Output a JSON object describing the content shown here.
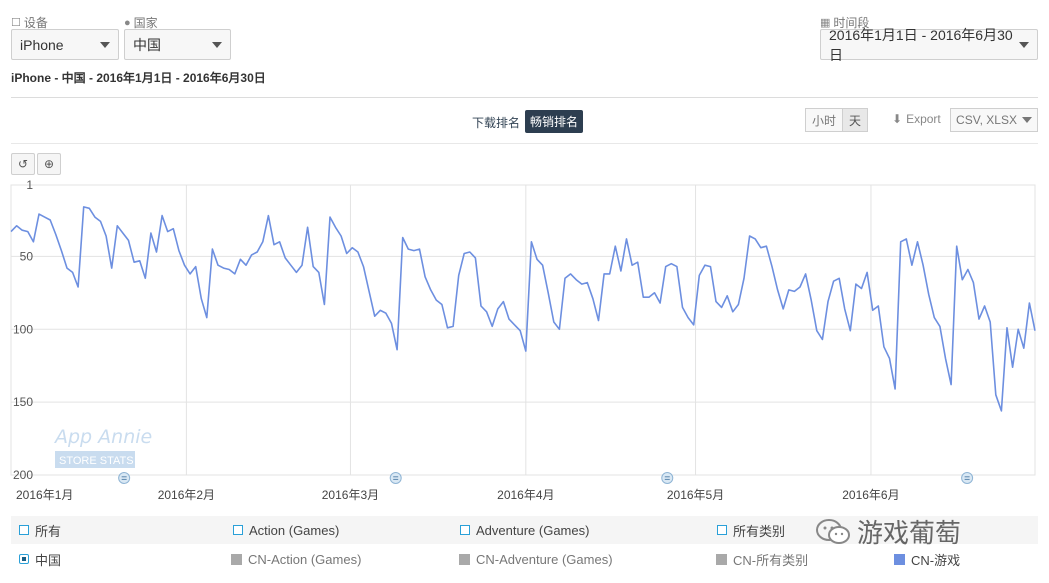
{
  "filters": {
    "device_label": "设备",
    "device_value": "iPhone",
    "country_label": "国家",
    "country_value": "中国",
    "period_label": "时间段",
    "period_value": "2016年1月1日 - 2016年6月30日"
  },
  "subtitle": "iPhone - 中国 - 2016年1月1日 - 2016年6月30日",
  "tabs": {
    "download": "下载排名",
    "grossing": "畅销排名"
  },
  "granularity": {
    "hour": "小时",
    "day": "天"
  },
  "export": {
    "label": "Export",
    "formats": "CSV, XLSX"
  },
  "watermark": {
    "brand": "App Annie",
    "tag": "STORE STATS"
  },
  "legend": {
    "row1": [
      "所有",
      "Action (Games)",
      "Adventure (Games)",
      "所有类别"
    ],
    "row2_selected": "中国",
    "row2": [
      "CN-Action (Games)",
      "CN-Adventure (Games)",
      "CN-所有类别",
      "CN-游戏"
    ]
  },
  "wechat_watermark": "游戏葡萄",
  "colors": {
    "series": "#6d8fe0",
    "grid": "#e3e3e3",
    "tab_active": "#2d3e50"
  },
  "chart_data": {
    "type": "line",
    "title": "",
    "ylabel": "",
    "y_reversed": true,
    "ylim": [
      1,
      200
    ],
    "y_ticks": [
      1,
      50,
      100,
      150,
      200
    ],
    "x_tick_labels": [
      "2016年1月",
      "2016年2月",
      "2016年3月",
      "2016年4月",
      "2016年5月",
      "2016年6月"
    ],
    "x_tick_days": [
      1,
      32,
      61,
      92,
      122,
      153
    ],
    "x_range_days": [
      1,
      182
    ],
    "series": [
      {
        "name": "CN-游戏",
        "values": [
          33,
          29,
          32,
          33,
          40,
          21,
          23,
          25,
          35,
          46,
          58,
          61,
          71,
          16,
          17,
          23,
          26,
          36,
          58,
          29,
          34,
          39,
          54,
          53,
          65,
          34,
          47,
          22,
          33,
          31,
          46,
          56,
          62,
          57,
          79,
          92,
          45,
          56,
          58,
          59,
          62,
          52,
          56,
          49,
          47,
          40,
          22,
          42,
          40,
          51,
          56,
          61,
          56,
          30,
          57,
          61,
          83,
          23,
          30,
          36,
          48,
          44,
          47,
          57,
          74,
          91,
          87,
          89,
          96,
          114,
          37,
          45,
          46,
          45,
          64,
          73,
          80,
          83,
          99,
          98,
          63,
          48,
          47,
          51,
          84,
          88,
          98,
          86,
          81,
          93,
          97,
          101,
          115,
          40,
          52,
          56,
          75,
          95,
          100,
          65,
          62,
          66,
          69,
          68,
          79,
          94,
          62,
          62,
          43,
          60,
          38,
          56,
          54,
          78,
          78,
          75,
          82,
          57,
          55,
          57,
          85,
          92,
          97,
          63,
          56,
          57,
          81,
          85,
          77,
          88,
          83,
          65,
          36,
          38,
          44,
          43,
          57,
          73,
          86,
          73,
          74,
          71,
          62,
          80,
          101,
          107,
          81,
          67,
          65,
          86,
          101,
          69,
          72,
          61,
          87,
          84,
          112,
          120,
          141,
          40,
          38,
          56,
          40,
          56,
          76,
          92,
          98,
          120,
          138,
          43,
          66,
          59,
          68,
          93,
          84,
          95,
          145,
          156,
          99,
          126,
          100,
          113,
          82,
          101
        ]
      }
    ],
    "event_markers_days": [
      21,
      69,
      117,
      170
    ],
    "grid": true,
    "legend_position": "bottom"
  }
}
